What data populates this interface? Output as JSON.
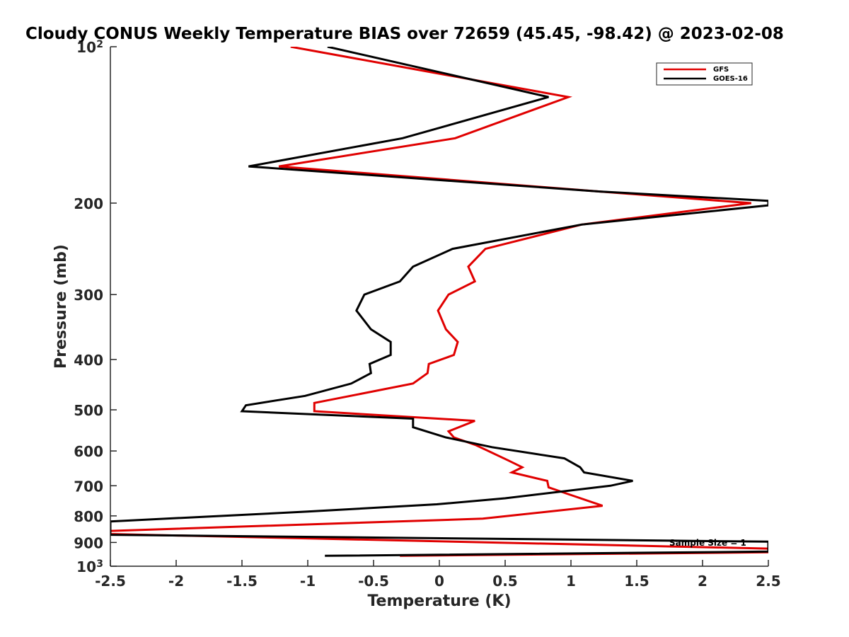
{
  "chart_data": {
    "type": "line",
    "title": "Cloudy CONUS Weekly Temperature BIAS over 72659 (45.45, -98.42) @ 2023-02-08",
    "xlabel": "Temperature (K)",
    "ylabel": "Pressure (mb)",
    "xlim": [
      -2.5,
      2.5
    ],
    "ylim": [
      100,
      1000
    ],
    "y_scale": "log",
    "y_reversed": true,
    "grid": false,
    "legend_position": "top-right",
    "x_ticks": [
      "-2.5",
      "-2",
      "-1.5",
      "-1",
      "-0.5",
      "0",
      "0.5",
      "1",
      "1.5",
      "2",
      "2.5"
    ],
    "y_ticks": [
      {
        "value": 100,
        "label": "10",
        "sup": "2"
      },
      {
        "value": 200,
        "label": "200"
      },
      {
        "value": 300,
        "label": "300"
      },
      {
        "value": 400,
        "label": "400"
      },
      {
        "value": 500,
        "label": "500"
      },
      {
        "value": 600,
        "label": "600"
      },
      {
        "value": 700,
        "label": "700"
      },
      {
        "value": 800,
        "label": "800"
      },
      {
        "value": 900,
        "label": "900"
      },
      {
        "value": 1000,
        "label": "10",
        "sup": "3"
      }
    ],
    "annotation": "Sample Size = 1",
    "series": [
      {
        "name": "GFS",
        "color": "#e00000",
        "points": [
          [
            -1.13,
            100
          ],
          [
            0.98,
            125
          ],
          [
            0.12,
            150
          ],
          [
            -1.22,
            170
          ],
          [
            1.22,
            190
          ],
          [
            2.37,
            200
          ],
          [
            1.08,
            220
          ],
          [
            0.35,
            245
          ],
          [
            0.22,
            265
          ],
          [
            0.27,
            283
          ],
          [
            0.07,
            300
          ],
          [
            -0.01,
            322
          ],
          [
            0.05,
            350
          ],
          [
            0.14,
            370
          ],
          [
            0.11,
            392
          ],
          [
            -0.08,
            408
          ],
          [
            -0.09,
            425
          ],
          [
            -0.2,
            445
          ],
          [
            -0.95,
            485
          ],
          [
            -0.95,
            503
          ],
          [
            0.27,
            525
          ],
          [
            0.07,
            550
          ],
          [
            0.11,
            565
          ],
          [
            0.28,
            585
          ],
          [
            0.52,
            625
          ],
          [
            0.63,
            645
          ],
          [
            0.55,
            660
          ],
          [
            0.82,
            685
          ],
          [
            0.83,
            705
          ],
          [
            0.97,
            725
          ],
          [
            1.24,
            765
          ],
          [
            0.33,
            810
          ],
          [
            -2.5,
            855
          ],
          [
            -2.5,
            867
          ],
          [
            2.5,
            925
          ],
          [
            2.5,
            940
          ],
          [
            -0.3,
            955
          ]
        ]
      },
      {
        "name": "GOES-16",
        "color": "#000000",
        "points": [
          [
            -0.85,
            100
          ],
          [
            0.83,
            125
          ],
          [
            -0.28,
            150
          ],
          [
            -1.45,
            170
          ],
          [
            1.22,
            190
          ],
          [
            2.5,
            198
          ],
          [
            2.5,
            202
          ],
          [
            1.08,
            220
          ],
          [
            0.1,
            245
          ],
          [
            -0.2,
            265
          ],
          [
            -0.3,
            283
          ],
          [
            -0.57,
            300
          ],
          [
            -0.63,
            322
          ],
          [
            -0.52,
            350
          ],
          [
            -0.37,
            370
          ],
          [
            -0.37,
            392
          ],
          [
            -0.53,
            408
          ],
          [
            -0.52,
            425
          ],
          [
            -0.67,
            445
          ],
          [
            -1.02,
            470
          ],
          [
            -1.47,
            490
          ],
          [
            -1.5,
            503
          ],
          [
            -0.2,
            520
          ],
          [
            -0.2,
            540
          ],
          [
            0.05,
            565
          ],
          [
            0.4,
            590
          ],
          [
            0.95,
            620
          ],
          [
            1.07,
            645
          ],
          [
            1.1,
            660
          ],
          [
            1.47,
            685
          ],
          [
            1.3,
            700
          ],
          [
            0.5,
            740
          ],
          [
            -0.02,
            760
          ],
          [
            -1.0,
            785
          ],
          [
            -2.5,
            820
          ],
          [
            -2.5,
            870
          ],
          [
            2.5,
            897
          ],
          [
            2.5,
            937
          ],
          [
            -0.87,
            955
          ]
        ]
      }
    ]
  }
}
